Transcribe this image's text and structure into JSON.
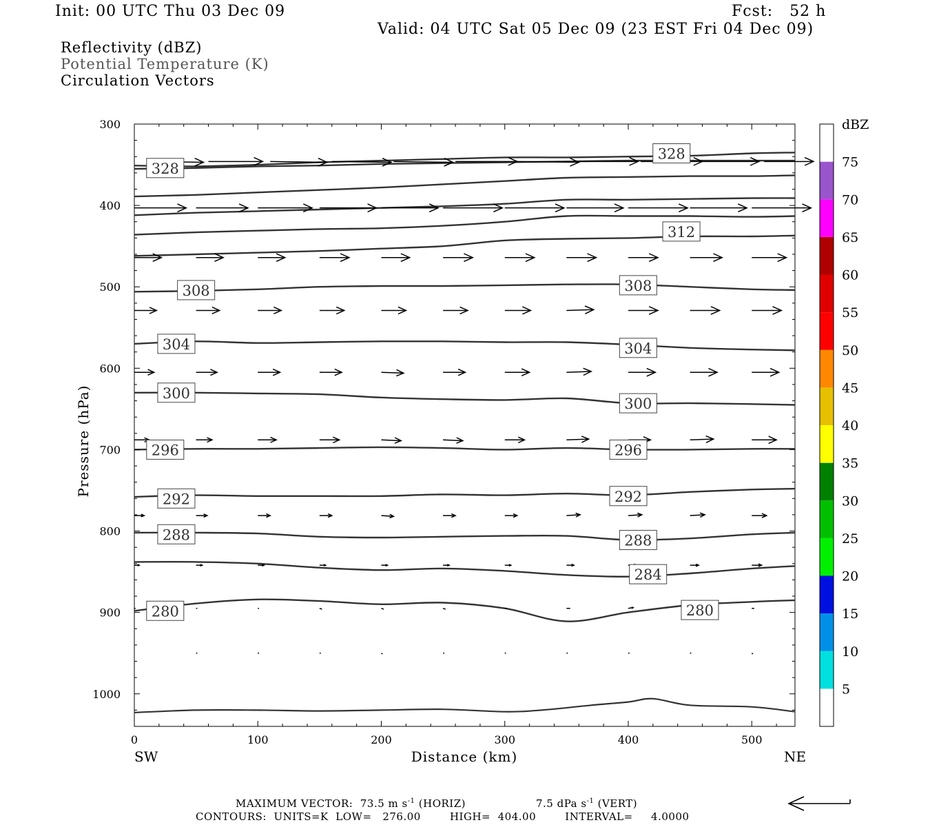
{
  "header": {
    "init": "Init: 00 UTC Thu 03 Dec 09",
    "fcst": "Fcst:   52 h",
    "valid": "Valid: 04 UTC Sat 05 Dec 09 (23 EST Fri 04 Dec 09)"
  },
  "legend": {
    "line1": "Reflectivity (dBZ)",
    "line2": "Potential Temperature (K)",
    "line3": "Circulation Vectors"
  },
  "footer": {
    "maxvec_label": "MAXIMUM VECTOR:",
    "maxvec_horiz": "73.5 m s",
    "horiz_tag": "(HORIZ)",
    "maxvec_vert": "7.5 dPa s",
    "vert_tag": "(VERT)",
    "exp": "-1",
    "contours": "CONTOURS:  UNITS=K  LOW=   276.00        HIGH=  404.00        INTERVAL=     4.0000"
  },
  "chart_data": {
    "type": "line",
    "xlabel": "Distance (km)",
    "ylabel": "Pressure (hPa)",
    "xlim": [
      0,
      535
    ],
    "ylim": [
      1040,
      300
    ],
    "x_ticks": [
      "0",
      "100",
      "200",
      "300",
      "400",
      "500"
    ],
    "y_ticks": [
      "300",
      "400",
      "500",
      "600",
      "700",
      "800",
      "900",
      "1000"
    ],
    "x_endpoint_labels": [
      "SW",
      "NE"
    ],
    "colorbar": {
      "unit": "dBZ",
      "labels": [
        "5",
        "10",
        "15",
        "20",
        "25",
        "30",
        "35",
        "40",
        "45",
        "50",
        "55",
        "60",
        "65",
        "70",
        "75"
      ],
      "colors": [
        "#ffffff",
        "#00e0e0",
        "#0090e8",
        "#0010e0",
        "#00f000",
        "#00c000",
        "#008000",
        "#ffff00",
        "#e6c000",
        "#ff8800",
        "#ff0000",
        "#e00000",
        "#b00000",
        "#ff00ff",
        "#9955cc",
        "#ffffff"
      ]
    },
    "x": [
      0,
      50,
      100,
      150,
      200,
      250,
      300,
      350,
      400,
      450,
      500,
      535
    ],
    "series": [
      {
        "name": "280",
        "values": [
          898,
          889,
          884,
          886,
          890,
          888,
          895,
          911,
          900,
          891,
          887,
          885
        ]
      },
      {
        "name": "284",
        "values": [
          838,
          838,
          840,
          845,
          848,
          846,
          849,
          854,
          856,
          852,
          846,
          843
        ]
      },
      {
        "name": "288",
        "values": [
          802,
          802,
          803,
          807,
          808,
          807,
          806,
          806,
          811,
          809,
          804,
          802
        ]
      },
      {
        "name": "292",
        "values": [
          758,
          756,
          757,
          757,
          757,
          755,
          756,
          754,
          756,
          752,
          749,
          748
        ]
      },
      {
        "name": "296",
        "values": [
          700,
          699,
          699,
          698,
          697,
          698,
          700,
          698,
          700,
          700,
          699,
          699
        ]
      },
      {
        "name": "300",
        "values": [
          630,
          630,
          631,
          632,
          636,
          638,
          639,
          637,
          643,
          643,
          644,
          645
        ]
      },
      {
        "name": "304",
        "values": [
          570,
          567,
          569,
          568,
          567,
          567,
          568,
          568,
          571,
          575,
          577,
          578
        ]
      },
      {
        "name": "308",
        "values": [
          506,
          505,
          503,
          500,
          499,
          499,
          498,
          497,
          497,
          500,
          503,
          504
        ]
      },
      {
        "name": "",
        "values": [
          462,
          460,
          458,
          456,
          453,
          450,
          443,
          441,
          440,
          438,
          438,
          437
        ]
      },
      {
        "name": "312",
        "values": [
          436,
          433,
          431,
          429,
          428,
          425,
          420,
          413,
          413,
          413,
          414,
          413
        ]
      },
      {
        "name": "",
        "values": [
          412,
          409,
          407,
          405,
          403,
          401,
          398,
          393,
          393,
          392,
          391,
          391
        ]
      },
      {
        "name": "",
        "values": [
          389,
          387,
          384,
          381,
          378,
          374,
          370,
          366,
          365,
          364,
          364,
          363
        ]
      },
      {
        "name": "",
        "values": [
          355,
          354,
          352,
          351,
          349,
          348,
          347,
          346,
          345,
          345,
          345,
          345
        ]
      },
      {
        "name": "328",
        "values": [
          351,
          352,
          350,
          347,
          345,
          343,
          341,
          341,
          340,
          339,
          336,
          335
        ]
      }
    ],
    "contour_labels": [
      {
        "text": "328",
        "x": 25,
        "p": 354
      },
      {
        "text": "328",
        "x": 435,
        "p": 336
      },
      {
        "text": "312",
        "x": 443,
        "p": 432
      },
      {
        "text": "308",
        "x": 50,
        "p": 504
      },
      {
        "text": "308",
        "x": 408,
        "p": 498
      },
      {
        "text": "304",
        "x": 34,
        "p": 570
      },
      {
        "text": "304",
        "x": 408,
        "p": 575
      },
      {
        "text": "300",
        "x": 34,
        "p": 630
      },
      {
        "text": "300",
        "x": 408,
        "p": 643
      },
      {
        "text": "296",
        "x": 25,
        "p": 700
      },
      {
        "text": "296",
        "x": 400,
        "p": 700
      },
      {
        "text": "292",
        "x": 34,
        "p": 760
      },
      {
        "text": "292",
        "x": 400,
        "p": 757
      },
      {
        "text": "288",
        "x": 34,
        "p": 804
      },
      {
        "text": "288",
        "x": 408,
        "p": 811
      },
      {
        "text": "284",
        "x": 416,
        "p": 853
      },
      {
        "text": "280",
        "x": 25,
        "p": 898
      },
      {
        "text": "280",
        "x": 458,
        "p": 897
      }
    ],
    "surface_line": {
      "x": [
        0,
        50,
        100,
        150,
        200,
        250,
        300,
        330,
        370,
        400,
        420,
        450,
        500,
        535
      ],
      "values": [
        1023,
        1020,
        1020,
        1021,
        1020,
        1019,
        1022,
        1020,
        1014,
        1010,
        1006,
        1014,
        1016,
        1022
      ]
    },
    "vector_levels": [
      {
        "p": 346,
        "x": [
          10,
          60,
          110,
          160,
          210,
          260,
          310,
          360,
          410,
          460,
          510
        ],
        "dx": [
          46,
          44,
          46,
          48,
          48,
          50,
          50,
          48,
          50,
          46,
          40
        ],
        "dy": [
          1,
          0,
          1,
          1,
          1,
          0,
          1,
          0,
          0,
          0,
          0
        ]
      },
      {
        "p": 403,
        "x": [
          0,
          50,
          100,
          150,
          200,
          250,
          300,
          350,
          400,
          450,
          500
        ],
        "dx": [
          42,
          42,
          44,
          46,
          46,
          48,
          48,
          46,
          48,
          46,
          48
        ],
        "dy": [
          0,
          0,
          0,
          0,
          0,
          0,
          0,
          0,
          0,
          0,
          0
        ]
      },
      {
        "p": 464,
        "x": [
          0,
          50,
          100,
          150,
          200,
          250,
          300,
          350,
          400,
          450,
          500
        ],
        "dx": [
          22,
          22,
          22,
          24,
          23,
          24,
          24,
          24,
          24,
          26,
          28
        ],
        "dy": [
          0,
          0,
          0,
          0,
          0,
          0,
          0,
          0,
          0,
          0,
          0
        ]
      },
      {
        "p": 529,
        "x": [
          0,
          50,
          100,
          150,
          200,
          250,
          300,
          350,
          400,
          450,
          500
        ],
        "dx": [
          18,
          19,
          19,
          20,
          20,
          20,
          21,
          22,
          24,
          24,
          24
        ],
        "dy": [
          0,
          0,
          0,
          0,
          0,
          0,
          0,
          -1,
          0,
          0,
          0
        ]
      },
      {
        "p": 605,
        "x": [
          0,
          50,
          100,
          150,
          200,
          250,
          300,
          350,
          400,
          450,
          500
        ],
        "dx": [
          16,
          17,
          18,
          18,
          18,
          18,
          20,
          20,
          22,
          22,
          22
        ],
        "dy": [
          0,
          0,
          0,
          0,
          1,
          0,
          0,
          -1,
          0,
          0,
          0
        ]
      },
      {
        "p": 688,
        "x": [
          0,
          50,
          100,
          150,
          200,
          250,
          300,
          350,
          400,
          450,
          500
        ],
        "dx": [
          12,
          13,
          15,
          16,
          16,
          16,
          16,
          18,
          18,
          19,
          20
        ],
        "dy": [
          0,
          0,
          0,
          0,
          1,
          1,
          0,
          -1,
          0,
          -1,
          0
        ]
      },
      {
        "p": 781,
        "x": [
          0,
          50,
          100,
          150,
          200,
          250,
          300,
          350,
          400,
          450,
          500
        ],
        "dx": [
          8,
          9,
          10,
          10,
          10,
          10,
          10,
          11,
          11,
          12,
          12
        ],
        "dy": [
          0,
          0,
          0,
          0,
          1,
          0,
          0,
          -1,
          -1,
          -1,
          0
        ]
      },
      {
        "p": 842,
        "x": [
          0,
          50,
          100,
          150,
          200,
          250,
          300,
          350,
          400,
          450,
          500
        ],
        "dx": [
          4,
          5,
          5,
          5,
          5,
          5,
          5,
          6,
          7,
          7,
          8
        ],
        "dy": [
          0,
          0,
          0,
          0,
          0,
          0,
          0,
          0,
          0,
          0,
          0
        ]
      },
      {
        "p": 895,
        "x": [
          0,
          50,
          100,
          150,
          200,
          250,
          300,
          350,
          400,
          450,
          500
        ],
        "dx": [
          1,
          1,
          1,
          2,
          2,
          2,
          2,
          3,
          4,
          2,
          2
        ],
        "dy": [
          0,
          0,
          0,
          1,
          1,
          1,
          0,
          0,
          -1,
          0,
          0
        ]
      },
      {
        "p": 950,
        "x": [
          50,
          100,
          150,
          200,
          250,
          300,
          350,
          400,
          450,
          500
        ],
        "dx": [
          1,
          1,
          1,
          1,
          1,
          1,
          1,
          1,
          1,
          1
        ],
        "dy": [
          0,
          0,
          0,
          1,
          0,
          0,
          0,
          0,
          0,
          1
        ]
      }
    ]
  }
}
